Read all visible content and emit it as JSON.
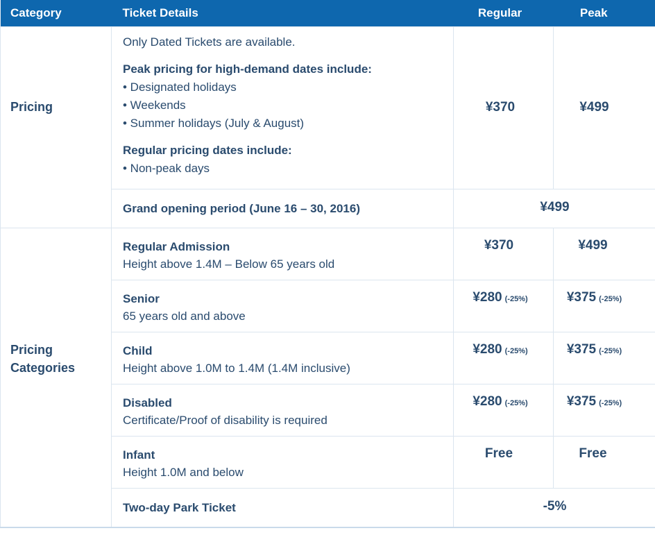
{
  "colors": {
    "header_bg": "#0e67ae",
    "header_text": "#ffffff",
    "body_text": "#2a4b6e",
    "border": "#dbe5ef"
  },
  "table": {
    "columns": {
      "category": "Category",
      "ticket_details": "Ticket Details",
      "regular": "Regular",
      "peak": "Peak"
    },
    "pricing": {
      "category_label": "Pricing",
      "details": {
        "intro": "Only Dated Tickets are available.",
        "peak_heading": "Peak pricing for high-demand dates include:",
        "peak_items": [
          "• Designated holidays",
          "• Weekends",
          "• Summer holidays (July & August)"
        ],
        "regular_heading": "Regular pricing dates include:",
        "regular_items": [
          "• Non-peak days"
        ],
        "regular_price": "¥370",
        "peak_price": "¥499"
      },
      "grand_opening": {
        "title": "Grand opening period (June 16 – 30, 2016)",
        "price": "¥499"
      }
    },
    "pricing_categories": {
      "category_label": "Pricing Categories",
      "rows": [
        {
          "title": "Regular Admission",
          "subtitle": "Height above 1.4M – Below 65 years old",
          "regular": "¥370",
          "regular_note": "",
          "peak": "¥499",
          "peak_note": ""
        },
        {
          "title": "Senior",
          "subtitle": "65 years old and above",
          "regular": "¥280",
          "regular_note": "(-25%)",
          "peak": "¥375",
          "peak_note": "(-25%)"
        },
        {
          "title": "Child",
          "subtitle": "Height above 1.0M to 1.4M (1.4M inclusive)",
          "regular": "¥280",
          "regular_note": "(-25%)",
          "peak": "¥375",
          "peak_note": "(-25%)"
        },
        {
          "title": "Disabled",
          "subtitle": "Certificate/Proof of disability is required",
          "regular": "¥280",
          "regular_note": "(-25%)",
          "peak": "¥375",
          "peak_note": "(-25%)"
        },
        {
          "title": "Infant",
          "subtitle": "Height 1.0M and below",
          "regular": "Free",
          "regular_note": "",
          "peak": "Free",
          "peak_note": ""
        }
      ],
      "two_day": {
        "title": "Two-day Park Ticket",
        "price": "-5%"
      }
    }
  }
}
